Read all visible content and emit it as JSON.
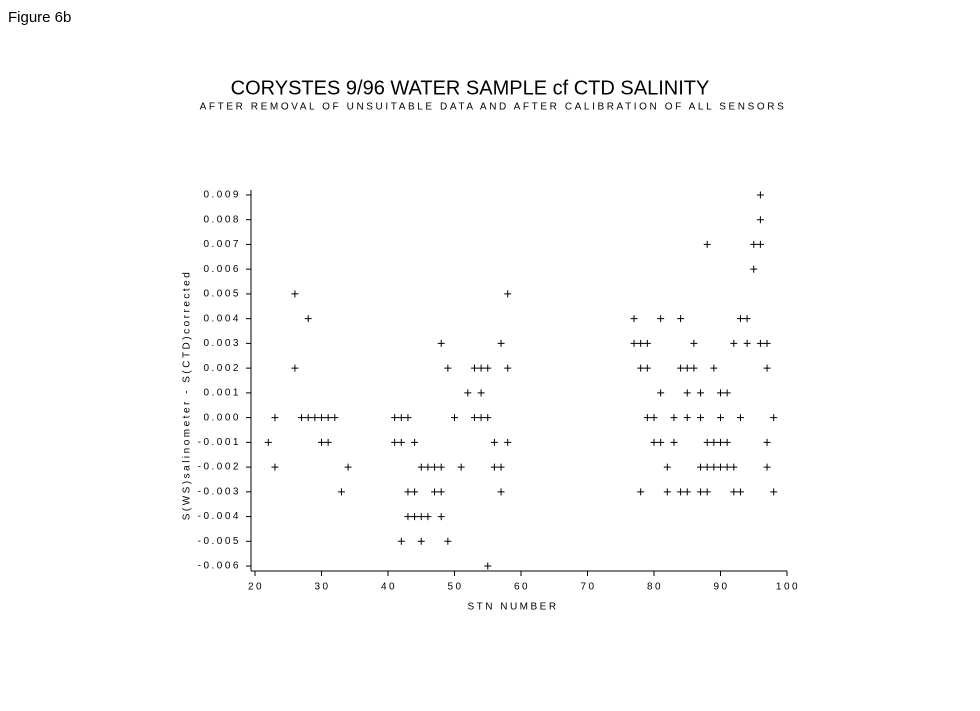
{
  "figure_label": "Figure 6b",
  "chart_data": {
    "type": "scatter",
    "title": "CORYSTES 9/96  WATER SAMPLE cf CTD SALINITY",
    "subtitle": "AFTER REMOVAL OF UNSUITABLE DATA AND AFTER CALIBRATION OF ALL SENSORS",
    "x_label": "STN NUMBER",
    "y_label": "S(WS)salinometer - S(CTD)corrected",
    "color": "#000000",
    "xlim": [
      20,
      100
    ],
    "xticks": [
      20,
      30,
      40,
      50,
      60,
      70,
      80,
      90,
      100
    ],
    "ylim": [
      -0.0062,
      0.0092
    ],
    "yticks": [
      0.009,
      0.008,
      0.007,
      0.006,
      0.005,
      0.004,
      0.003,
      0.002,
      0.001,
      {
        "value": 0,
        "label": "0.000"
      },
      -0.001,
      -0.002,
      -0.003,
      -0.004,
      -0.005,
      -0.006
    ],
    "x": [
      96,
      96,
      88,
      95,
      96,
      95,
      26,
      58,
      28,
      77,
      81,
      84,
      93,
      94,
      48,
      57,
      77,
      78,
      79,
      86,
      92,
      94,
      96,
      97,
      26,
      49,
      53,
      54,
      55,
      58,
      78,
      79,
      84,
      85,
      86,
      89,
      97,
      52,
      54,
      81,
      85,
      87,
      90,
      91,
      23,
      27,
      28,
      29,
      30,
      31,
      32,
      41,
      42,
      43,
      50,
      53,
      54,
      55,
      79,
      80,
      83,
      85,
      87,
      90,
      93,
      98,
      22,
      30,
      31,
      41,
      42,
      44,
      56,
      58,
      80,
      81,
      83,
      88,
      89,
      90,
      91,
      97,
      23,
      34,
      45,
      46,
      47,
      48,
      51,
      56,
      57,
      82,
      87,
      88,
      89,
      90,
      91,
      92,
      97,
      33,
      43,
      44,
      47,
      48,
      57,
      78,
      82,
      84,
      85,
      87,
      88,
      92,
      93,
      98,
      43,
      44,
      45,
      46,
      48,
      42,
      45,
      49,
      55
    ],
    "values": [
      0.009,
      0.008,
      0.007,
      0.007,
      0.007,
      0.006,
      0.005,
      0.005,
      0.004,
      0.004,
      0.004,
      0.004,
      0.004,
      0.004,
      0.003,
      0.003,
      0.003,
      0.003,
      0.003,
      0.003,
      0.003,
      0.003,
      0.003,
      0.003,
      0.002,
      0.002,
      0.002,
      0.002,
      0.002,
      0.002,
      0.002,
      0.002,
      0.002,
      0.002,
      0.002,
      0.002,
      0.002,
      0.001,
      0.001,
      0.001,
      0.001,
      0.001,
      0.001,
      0.001,
      0,
      0,
      0,
      0,
      0,
      0,
      0,
      0,
      0,
      0,
      0,
      0,
      0,
      0,
      0,
      0,
      0,
      0,
      0,
      0,
      0,
      0,
      -0.001,
      -0.001,
      -0.001,
      -0.001,
      -0.001,
      -0.001,
      -0.001,
      -0.001,
      -0.001,
      -0.001,
      -0.001,
      -0.001,
      -0.001,
      -0.001,
      -0.001,
      -0.001,
      -0.002,
      -0.002,
      -0.002,
      -0.002,
      -0.002,
      -0.002,
      -0.002,
      -0.002,
      -0.002,
      -0.002,
      -0.002,
      -0.002,
      -0.002,
      -0.002,
      -0.002,
      -0.002,
      -0.002,
      -0.003,
      -0.003,
      -0.003,
      -0.003,
      -0.003,
      -0.003,
      -0.003,
      -0.003,
      -0.003,
      -0.003,
      -0.003,
      -0.003,
      -0.003,
      -0.003,
      -0.003,
      -0.004,
      -0.004,
      -0.004,
      -0.004,
      -0.004,
      -0.005,
      -0.005,
      -0.005,
      -0.006
    ]
  }
}
